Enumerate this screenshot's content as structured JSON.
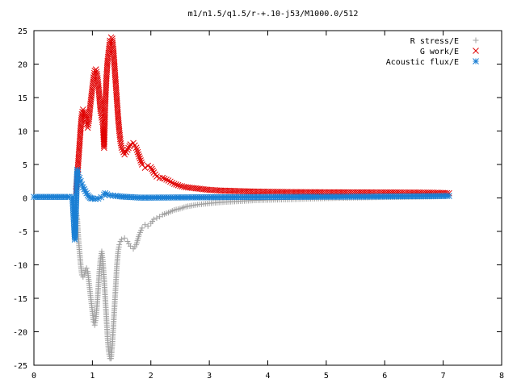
{
  "chart_data": {
    "type": "scatter",
    "title": "m1/n1.5/q1.5/r-+.10-j53/M1000.0/512",
    "xlabel": "",
    "ylabel": "",
    "xlim": [
      0,
      8
    ],
    "ylim": [
      -25,
      25
    ],
    "xticks": [
      "0",
      "1",
      "2",
      "3",
      "4",
      "5",
      "6",
      "7",
      "8"
    ],
    "yticks": [
      "25",
      "20",
      "15",
      "10",
      "5",
      "0",
      "-5",
      "-10",
      "-15",
      "-20",
      "-25"
    ],
    "grid": false,
    "legend": "top-right",
    "series": [
      {
        "name": "R stress/E",
        "marker": "plus",
        "color": "#a0a0a0",
        "points": [
          [
            0.72,
            -2
          ],
          [
            0.74,
            -3
          ],
          [
            0.76,
            -6
          ],
          [
            0.78,
            -8
          ],
          [
            0.8,
            -10
          ],
          [
            0.82,
            -11.5
          ],
          [
            0.84,
            -11.8
          ],
          [
            0.86,
            -11.5
          ],
          [
            0.88,
            -10.8
          ],
          [
            0.9,
            -10.5
          ],
          [
            0.92,
            -11
          ],
          [
            0.94,
            -12.5
          ],
          [
            0.96,
            -14
          ],
          [
            0.98,
            -15.5
          ],
          [
            1.0,
            -17
          ],
          [
            1.02,
            -18.5
          ],
          [
            1.04,
            -19
          ],
          [
            1.06,
            -18
          ],
          [
            1.08,
            -16
          ],
          [
            1.1,
            -13.5
          ],
          [
            1.12,
            -11
          ],
          [
            1.14,
            -9
          ],
          [
            1.16,
            -8
          ],
          [
            1.18,
            -9.5
          ],
          [
            1.2,
            -12
          ],
          [
            1.22,
            -15
          ],
          [
            1.24,
            -18
          ],
          [
            1.26,
            -21
          ],
          [
            1.28,
            -23
          ],
          [
            1.3,
            -24
          ],
          [
            1.32,
            -24
          ],
          [
            1.34,
            -22
          ],
          [
            1.36,
            -19
          ],
          [
            1.38,
            -16
          ],
          [
            1.4,
            -13
          ],
          [
            1.42,
            -10
          ],
          [
            1.44,
            -8
          ],
          [
            1.46,
            -7
          ],
          [
            1.48,
            -6.5
          ],
          [
            1.5,
            -6.2
          ],
          [
            1.55,
            -6.0
          ],
          [
            1.6,
            -6.5
          ],
          [
            1.65,
            -7.2
          ],
          [
            1.7,
            -7.6
          ],
          [
            1.75,
            -7
          ],
          [
            1.8,
            -5.5
          ],
          [
            1.85,
            -4.5
          ],
          [
            1.9,
            -4
          ],
          [
            1.95,
            -4.2
          ],
          [
            2.0,
            -3.8
          ],
          [
            2.05,
            -3.2
          ],
          [
            2.1,
            -3.0
          ],
          [
            2.15,
            -2.8
          ],
          [
            2.2,
            -2.5
          ],
          [
            2.3,
            -2.2
          ],
          [
            2.4,
            -1.8
          ],
          [
            2.5,
            -1.6
          ],
          [
            2.6,
            -1.3
          ],
          [
            2.7,
            -1.15
          ],
          [
            2.8,
            -1.0
          ],
          [
            2.9,
            -0.9
          ],
          [
            3.0,
            -0.8
          ],
          [
            3.2,
            -0.65
          ],
          [
            3.4,
            -0.55
          ],
          [
            3.6,
            -0.45
          ],
          [
            3.8,
            -0.35
          ],
          [
            4.0,
            -0.3
          ],
          [
            4.2,
            -0.25
          ],
          [
            4.4,
            -0.2
          ],
          [
            4.6,
            -0.15
          ],
          [
            4.8,
            -0.1
          ],
          [
            5.0,
            -0.05
          ],
          [
            5.3,
            0
          ],
          [
            5.6,
            0.05
          ],
          [
            5.9,
            0.1
          ],
          [
            6.2,
            0.12
          ],
          [
            6.5,
            0.15
          ],
          [
            6.8,
            0.2
          ],
          [
            7.0,
            0.25
          ],
          [
            7.1,
            0.3
          ]
        ]
      },
      {
        "name": "G work/E",
        "marker": "cross",
        "color": "#e00000",
        "points": [
          [
            0.72,
            1
          ],
          [
            0.74,
            3
          ],
          [
            0.76,
            5.5
          ],
          [
            0.78,
            8
          ],
          [
            0.8,
            10.5
          ],
          [
            0.82,
            12.5
          ],
          [
            0.84,
            13.2
          ],
          [
            0.86,
            12.8
          ],
          [
            0.88,
            12
          ],
          [
            0.9,
            11
          ],
          [
            0.92,
            10.5
          ],
          [
            0.94,
            11.5
          ],
          [
            0.96,
            13.5
          ],
          [
            0.98,
            15
          ],
          [
            1.0,
            16.5
          ],
          [
            1.02,
            18
          ],
          [
            1.04,
            19
          ],
          [
            1.06,
            19.2
          ],
          [
            1.08,
            18.5
          ],
          [
            1.1,
            17
          ],
          [
            1.12,
            15
          ],
          [
            1.14,
            13
          ],
          [
            1.16,
            12
          ],
          [
            1.18,
            11
          ],
          [
            1.2,
            7.5
          ],
          [
            1.22,
            14
          ],
          [
            1.24,
            18
          ],
          [
            1.26,
            20.5
          ],
          [
            1.28,
            22
          ],
          [
            1.3,
            23.5
          ],
          [
            1.32,
            24
          ],
          [
            1.34,
            23.8
          ],
          [
            1.36,
            22
          ],
          [
            1.38,
            19.5
          ],
          [
            1.4,
            17
          ],
          [
            1.42,
            14.5
          ],
          [
            1.44,
            12
          ],
          [
            1.46,
            10
          ],
          [
            1.48,
            8.5
          ],
          [
            1.5,
            7.5
          ],
          [
            1.55,
            6.5
          ],
          [
            1.6,
            7.2
          ],
          [
            1.65,
            8
          ],
          [
            1.7,
            8.2
          ],
          [
            1.75,
            7.5
          ],
          [
            1.8,
            6.2
          ],
          [
            1.85,
            5
          ],
          [
            1.9,
            4.5
          ],
          [
            1.95,
            4.8
          ],
          [
            2.0,
            4.6
          ],
          [
            2.05,
            3.8
          ],
          [
            2.1,
            3.2
          ],
          [
            2.15,
            3.0
          ],
          [
            2.2,
            3.0
          ],
          [
            2.3,
            2.6
          ],
          [
            2.4,
            2.1
          ],
          [
            2.5,
            1.8
          ],
          [
            2.6,
            1.6
          ],
          [
            2.7,
            1.5
          ],
          [
            2.8,
            1.4
          ],
          [
            2.9,
            1.3
          ],
          [
            3.0,
            1.2
          ],
          [
            3.2,
            1.1
          ],
          [
            3.4,
            1.05
          ],
          [
            3.6,
            1.0
          ],
          [
            3.8,
            0.95
          ],
          [
            4.0,
            0.92
          ],
          [
            4.2,
            0.9
          ],
          [
            4.4,
            0.88
          ],
          [
            4.6,
            0.87
          ],
          [
            4.8,
            0.86
          ],
          [
            5.0,
            0.85
          ],
          [
            5.3,
            0.84
          ],
          [
            5.6,
            0.83
          ],
          [
            5.9,
            0.82
          ],
          [
            6.2,
            0.81
          ],
          [
            6.5,
            0.8
          ],
          [
            6.8,
            0.78
          ],
          [
            7.0,
            0.75
          ],
          [
            7.1,
            0.7
          ]
        ]
      },
      {
        "name": "Acoustic flux/E",
        "marker": "star",
        "color": "#1a7fd4",
        "points": [
          [
            0.0,
            0.15
          ],
          [
            0.1,
            0.15
          ],
          [
            0.2,
            0.15
          ],
          [
            0.3,
            0.15
          ],
          [
            0.4,
            0.15
          ],
          [
            0.5,
            0.15
          ],
          [
            0.6,
            0.15
          ],
          [
            0.66,
            0.15
          ],
          [
            0.7,
            -6.2
          ],
          [
            0.72,
            -1.5
          ],
          [
            0.74,
            4.2
          ],
          [
            0.76,
            3.5
          ],
          [
            0.78,
            3.0
          ],
          [
            0.8,
            2.5
          ],
          [
            0.82,
            2.0
          ],
          [
            0.84,
            1.6
          ],
          [
            0.86,
            1.3
          ],
          [
            0.88,
            1.0
          ],
          [
            0.9,
            0.7
          ],
          [
            0.92,
            0.4
          ],
          [
            0.94,
            0.2
          ],
          [
            0.96,
            0.05
          ],
          [
            0.98,
            -0.05
          ],
          [
            1.0,
            -0.1
          ],
          [
            1.05,
            -0.15
          ],
          [
            1.1,
            -0.1
          ],
          [
            1.15,
            0.1
          ],
          [
            1.2,
            0.5
          ],
          [
            1.22,
            0.7
          ],
          [
            1.25,
            0.55
          ],
          [
            1.3,
            0.4
          ],
          [
            1.35,
            0.35
          ],
          [
            1.4,
            0.3
          ],
          [
            1.5,
            0.2
          ],
          [
            1.6,
            0.15
          ],
          [
            1.7,
            0.1
          ],
          [
            1.8,
            0.05
          ],
          [
            1.9,
            0.05
          ],
          [
            2.0,
            0.05
          ],
          [
            2.2,
            0.06
          ],
          [
            2.4,
            0.07
          ],
          [
            2.6,
            0.08
          ],
          [
            2.8,
            0.09
          ],
          [
            3.0,
            0.1
          ],
          [
            3.3,
            0.12
          ],
          [
            3.6,
            0.13
          ],
          [
            3.9,
            0.14
          ],
          [
            4.2,
            0.15
          ],
          [
            4.5,
            0.16
          ],
          [
            4.8,
            0.17
          ],
          [
            5.1,
            0.18
          ],
          [
            5.4,
            0.19
          ],
          [
            5.7,
            0.2
          ],
          [
            6.0,
            0.22
          ],
          [
            6.3,
            0.24
          ],
          [
            6.6,
            0.26
          ],
          [
            6.9,
            0.28
          ],
          [
            7.1,
            0.3
          ]
        ]
      }
    ]
  }
}
